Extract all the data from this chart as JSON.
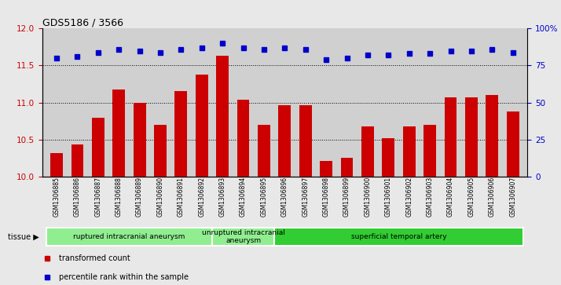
{
  "title": "GDS5186 / 3566",
  "samples": [
    "GSM1306885",
    "GSM1306886",
    "GSM1306887",
    "GSM1306888",
    "GSM1306889",
    "GSM1306890",
    "GSM1306891",
    "GSM1306892",
    "GSM1306893",
    "GSM1306894",
    "GSM1306895",
    "GSM1306896",
    "GSM1306897",
    "GSM1306898",
    "GSM1306899",
    "GSM1306900",
    "GSM1306901",
    "GSM1306902",
    "GSM1306903",
    "GSM1306904",
    "GSM1306905",
    "GSM1306906",
    "GSM1306907"
  ],
  "transformed_count": [
    10.32,
    10.43,
    10.8,
    11.18,
    11.0,
    10.7,
    11.16,
    11.38,
    11.63,
    11.04,
    10.7,
    10.97,
    10.97,
    10.21,
    10.25,
    10.68,
    10.52,
    10.68,
    10.7,
    11.07,
    11.07,
    11.1,
    10.88
  ],
  "percentile_rank": [
    80,
    81,
    84,
    86,
    85,
    84,
    86,
    87,
    90,
    87,
    86,
    87,
    86,
    79,
    80,
    82,
    82,
    83,
    83,
    85,
    85,
    86,
    84
  ],
  "bar_color": "#cc0000",
  "dot_color": "#0000cc",
  "ylim_left": [
    10,
    12
  ],
  "ylim_right": [
    0,
    100
  ],
  "yticks_left": [
    10,
    10.5,
    11,
    11.5,
    12
  ],
  "yticks_right": [
    0,
    25,
    50,
    75,
    100
  ],
  "ytick_labels_right": [
    "0",
    "25",
    "50",
    "75",
    "100%"
  ],
  "hlines": [
    10.5,
    11.0,
    11.5
  ],
  "group_boundaries": [
    0,
    8,
    11,
    23
  ],
  "group_labels": [
    "ruptured intracranial aneurysm",
    "unruptured intracranial\naneurysm",
    "superficial temporal artery"
  ],
  "group_colors": [
    "#90ee90",
    "#90ee90",
    "#32cd32"
  ],
  "tissue_label": "tissue",
  "legend_bar_label": "transformed count",
  "legend_dot_label": "percentile rank within the sample",
  "fig_bg_color": "#e8e8e8",
  "plot_bg_color": "#d0d0d0"
}
